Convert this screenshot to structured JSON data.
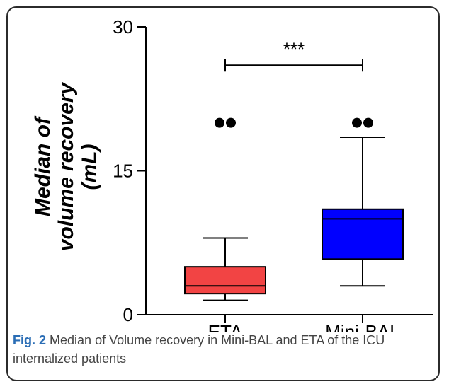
{
  "chart_data": {
    "type": "box",
    "ylabel_lines": [
      "Median of",
      "volume recovery",
      "(mL)"
    ],
    "ylim": [
      0,
      30
    ],
    "yticks": [
      0,
      15,
      30
    ],
    "categories": [
      "ETA",
      "Mini-BAL"
    ],
    "boxes": [
      {
        "category": "ETA",
        "color": "#f24444",
        "whisker_low": 1.5,
        "q1": 2.2,
        "median": 3.0,
        "q3": 5.0,
        "whisker_high": 8.0,
        "outliers": [
          20,
          20
        ]
      },
      {
        "category": "Mini-BAL",
        "color": "#0000ff",
        "whisker_low": 3.0,
        "q1": 5.8,
        "median": 10.0,
        "q3": 11.0,
        "whisker_high": 18.5,
        "outliers": [
          20,
          20
        ]
      }
    ],
    "significance": {
      "from": "ETA",
      "to": "Mini-BAL",
      "y": 26,
      "label": "***"
    }
  },
  "caption": {
    "label": "Fig. 2",
    "text": "Median of Volume recovery in Mini-BAL and ETA of the ICU internalized patients"
  }
}
